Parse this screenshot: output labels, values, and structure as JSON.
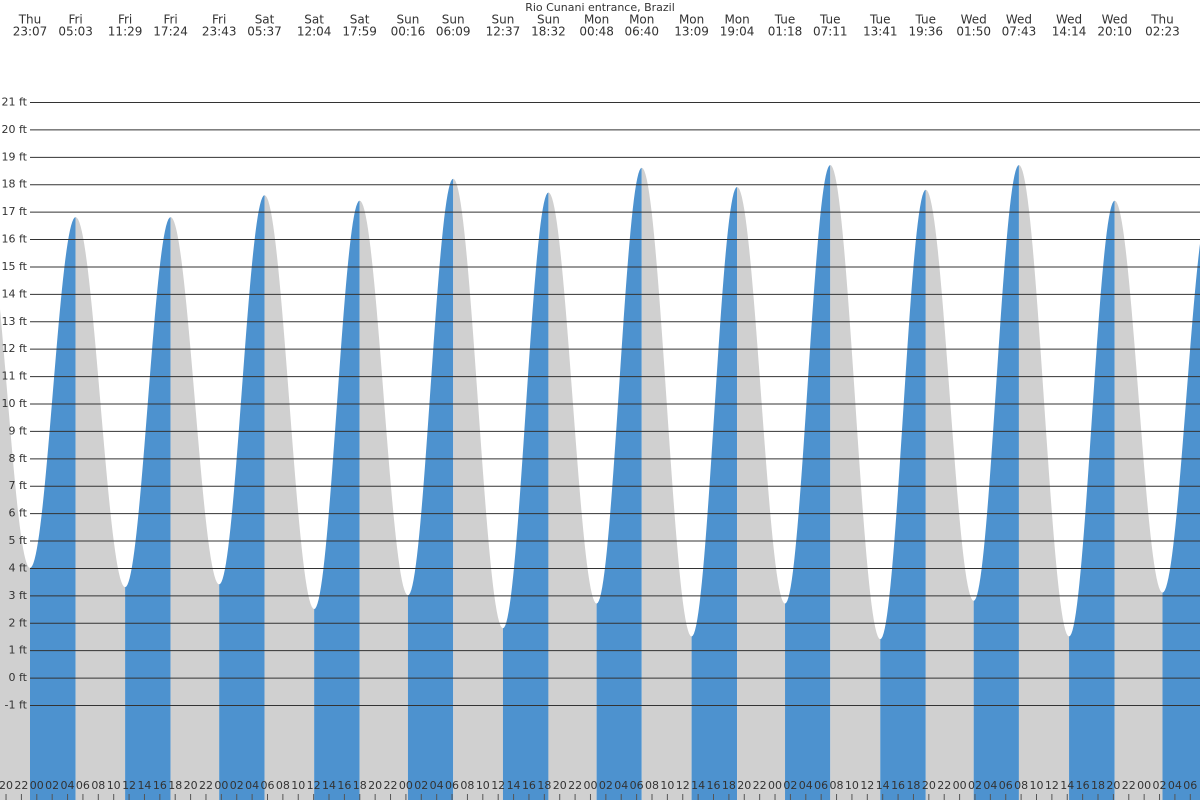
{
  "chart_data": {
    "type": "tide",
    "title": "Rio Cunani entrance, Brazil",
    "days": [
      "Thu",
      "Fri",
      "Fri",
      "Fri",
      "Fri",
      "Sat",
      "Sat",
      "Sat",
      "Sun",
      "Sun",
      "Sun",
      "Sun",
      "Mon",
      "Mon",
      "Mon",
      "Mon",
      "Tue",
      "Tue",
      "Tue",
      "Tue",
      "Wed",
      "Wed",
      "Wed",
      "Wed",
      "Thu"
    ],
    "times": [
      "23:07",
      "05:03",
      "11:29",
      "17:24",
      "23:43",
      "05:37",
      "12:04",
      "17:59",
      "00:16",
      "06:09",
      "12:37",
      "18:32",
      "00:48",
      "06:40",
      "13:09",
      "19:04",
      "01:18",
      "07:11",
      "13:41",
      "19:36",
      "01:50",
      "07:43",
      "14:14",
      "20:10",
      "02:23"
    ],
    "heights": [
      4.0,
      16.8,
      3.3,
      16.8,
      3.4,
      17.6,
      2.5,
      17.4,
      3.0,
      18.2,
      1.8,
      17.7,
      2.7,
      18.6,
      1.5,
      17.9,
      2.7,
      18.7,
      1.4,
      17.8,
      2.8,
      18.7,
      1.5,
      17.4,
      3.1
    ],
    "hour_labels": [
      "20",
      "22",
      "00",
      "02",
      "04",
      "06",
      "08",
      "10",
      "12",
      "14",
      "16",
      "18",
      "20",
      "22",
      "00",
      "02",
      "04",
      "06",
      "08",
      "10",
      "12",
      "14",
      "16",
      "18",
      "20",
      "22",
      "00",
      "02",
      "04",
      "06",
      "08",
      "10",
      "12",
      "14",
      "16",
      "18",
      "20",
      "22",
      "00",
      "02",
      "04",
      "06",
      "08",
      "10",
      "12",
      "14",
      "16",
      "18",
      "20",
      "22",
      "00",
      "02",
      "04",
      "06",
      "08",
      "10",
      "12",
      "14",
      "16",
      "18",
      "20",
      "22",
      "00",
      "02",
      "04",
      "06",
      "08",
      "10",
      "12",
      "14",
      "16",
      "18",
      "20",
      "22",
      "00",
      "02",
      "04",
      "06"
    ],
    "rise_color": "#4d92cf",
    "fall_color": "#d0d0d0",
    "ylim": [
      -1,
      21
    ],
    "yticks": [
      {
        "value": -1,
        "label": "-1 ft"
      },
      {
        "value": 0,
        "label": "0 ft"
      },
      {
        "value": 1,
        "label": "1 ft"
      },
      {
        "value": 2,
        "label": "2 ft"
      },
      {
        "value": 3,
        "label": "3 ft"
      },
      {
        "value": 4,
        "label": "4 ft"
      },
      {
        "value": 5,
        "label": "5 ft"
      },
      {
        "value": 6,
        "label": "6 ft"
      },
      {
        "value": 7,
        "label": "7 ft"
      },
      {
        "value": 8,
        "label": "8 ft"
      },
      {
        "value": 9,
        "label": "9 ft"
      },
      {
        "value": 10,
        "label": "10 ft"
      },
      {
        "value": 11,
        "label": "11 ft"
      },
      {
        "value": 12,
        "label": "12 ft"
      },
      {
        "value": 13,
        "label": "13 ft"
      },
      {
        "value": 14,
        "label": "14 ft"
      },
      {
        "value": 15,
        "label": "15 ft"
      },
      {
        "value": 16,
        "label": "16 ft"
      },
      {
        "value": 17,
        "label": "17 ft"
      },
      {
        "value": 18,
        "label": "18 ft"
      },
      {
        "value": 19,
        "label": "19 ft"
      },
      {
        "value": 20,
        "label": "20 ft"
      },
      {
        "value": 21,
        "label": "21 ft"
      }
    ],
    "grid": true
  }
}
